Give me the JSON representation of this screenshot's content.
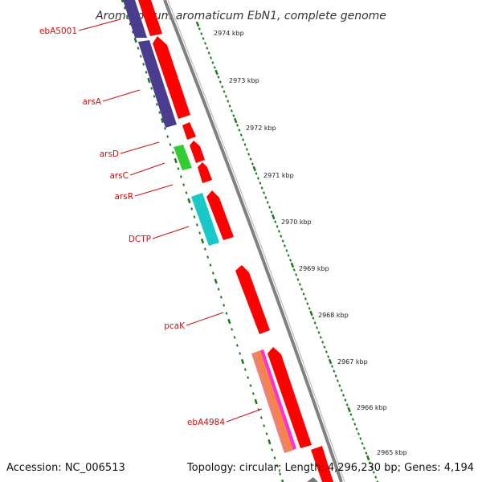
{
  "title": "Aromatoleum aromaticum EbN1, complete genome",
  "footer": {
    "accession": "Accession: NC_006513",
    "topology": "Topology: circular; Length: 4,296,230 bp; Genes: 4,194"
  },
  "colors": {
    "forward_cds": "#ff0000",
    "backbone": "#808080",
    "gene_label": "#cc1111",
    "tick": "#1a7a1a",
    "arsA": "#4a3d8f",
    "arsC": "#33cc33",
    "DCTP": "#19c8c8",
    "ebA4984": "#f08070",
    "accent_stripe_1": "#ff8c00",
    "accent_stripe_2": "#ff33cc"
  },
  "scale_labels": [
    "2974 kbp",
    "2973 kbp",
    "2972 kbp",
    "2971 kbp",
    "2970 kbp",
    "2969 kbp",
    "2968 kbp",
    "2967 kbp",
    "2966 kbp",
    "2965 kbp"
  ],
  "gene_labels": [
    "ebA5001",
    "arsA",
    "arsD",
    "arsC",
    "arsR",
    "DCTP",
    "pcaK",
    "ebA4984"
  ]
}
